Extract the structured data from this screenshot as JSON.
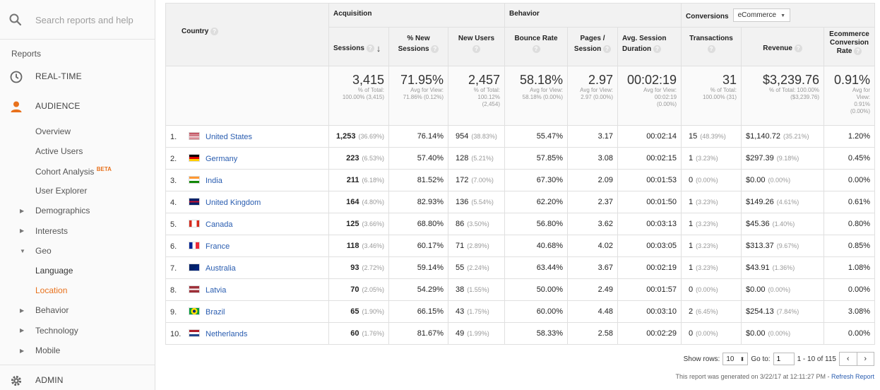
{
  "sidebar": {
    "search_placeholder": "Search reports and help",
    "reports_label": "Reports",
    "realtime": "REAL-TIME",
    "audience": "AUDIENCE",
    "overview": "Overview",
    "active_users": "Active Users",
    "cohort": "Cohort Analysis",
    "cohort_badge": "BETA",
    "user_explorer": "User Explorer",
    "demographics": "Demographics",
    "interests": "Interests",
    "geo": "Geo",
    "language": "Language",
    "location": "Location",
    "behavior": "Behavior",
    "technology": "Technology",
    "mobile": "Mobile",
    "admin": "ADMIN",
    "accent_color": "#e8711c"
  },
  "table": {
    "groups": {
      "acquisition": "Acquisition",
      "behavior": "Behavior",
      "conversions": "Conversions",
      "conversion_select": "eCommerce"
    },
    "headers": {
      "country": "Country",
      "sessions": "Sessions",
      "new_sessions_1": "% New",
      "new_sessions_2": "Sessions",
      "new_users": "New Users",
      "bounce_rate": "Bounce Rate",
      "pages_1": "Pages /",
      "pages_2": "Session",
      "avg_dur_1": "Avg. Session",
      "avg_dur_2": "Duration",
      "transactions": "Transactions",
      "revenue": "Revenue",
      "ecr_1": "Ecommerce",
      "ecr_2": "Conversion",
      "ecr_3": "Rate"
    },
    "totals": {
      "sessions": "3,415",
      "sessions_sub1": "% of Total:",
      "sessions_sub2": "100.00% (3,415)",
      "new_sessions": "71.95%",
      "new_sessions_sub1": "Avg for View:",
      "new_sessions_sub2": "71.86% (0.12%)",
      "new_users": "2,457",
      "new_users_sub1": "% of Total:",
      "new_users_sub2": "100.12%",
      "new_users_sub3": "(2,454)",
      "bounce": "58.18%",
      "bounce_sub1": "Avg for View:",
      "bounce_sub2": "58.18% (0.00%)",
      "pages": "2.97",
      "pages_sub1": "Avg for View:",
      "pages_sub2": "2.97 (0.00%)",
      "duration": "00:02:19",
      "duration_sub1": "Avg for View:",
      "duration_sub2": "00:02:19",
      "duration_sub3": "(0.00%)",
      "transactions": "31",
      "transactions_sub1": "% of Total:",
      "transactions_sub2": "100.00% (31)",
      "revenue": "$3,239.76",
      "revenue_sub1": "% of Total: 100.00%",
      "revenue_sub2": "($3,239.76)",
      "ecr": "0.91%",
      "ecr_sub1": "Avg for",
      "ecr_sub2": "View:",
      "ecr_sub3": "0.91%",
      "ecr_sub4": "(0.00%)"
    },
    "rows": [
      {
        "rank": "1.",
        "country": "United States",
        "flag": "us",
        "sessions": "1,253",
        "sessions_pct": "(36.69%)",
        "new_sessions": "76.14%",
        "new_users": "954",
        "new_users_pct": "(38.83%)",
        "bounce": "55.47%",
        "pages": "3.17",
        "duration": "00:02:14",
        "transactions": "15",
        "transactions_pct": "(48.39%)",
        "revenue": "$1,140.72",
        "revenue_pct": "(35.21%)",
        "ecr": "1.20%"
      },
      {
        "rank": "2.",
        "country": "Germany",
        "flag": "de",
        "sessions": "223",
        "sessions_pct": "(6.53%)",
        "new_sessions": "57.40%",
        "new_users": "128",
        "new_users_pct": "(5.21%)",
        "bounce": "57.85%",
        "pages": "3.08",
        "duration": "00:02:15",
        "transactions": "1",
        "transactions_pct": "(3.23%)",
        "revenue": "$297.39",
        "revenue_pct": "(9.18%)",
        "ecr": "0.45%"
      },
      {
        "rank": "3.",
        "country": "India",
        "flag": "in",
        "sessions": "211",
        "sessions_pct": "(6.18%)",
        "new_sessions": "81.52%",
        "new_users": "172",
        "new_users_pct": "(7.00%)",
        "bounce": "67.30%",
        "pages": "2.09",
        "duration": "00:01:53",
        "transactions": "0",
        "transactions_pct": "(0.00%)",
        "revenue": "$0.00",
        "revenue_pct": "(0.00%)",
        "ecr": "0.00%"
      },
      {
        "rank": "4.",
        "country": "United Kingdom",
        "flag": "gb",
        "sessions": "164",
        "sessions_pct": "(4.80%)",
        "new_sessions": "82.93%",
        "new_users": "136",
        "new_users_pct": "(5.54%)",
        "bounce": "62.20%",
        "pages": "2.37",
        "duration": "00:01:50",
        "transactions": "1",
        "transactions_pct": "(3.23%)",
        "revenue": "$149.26",
        "revenue_pct": "(4.61%)",
        "ecr": "0.61%"
      },
      {
        "rank": "5.",
        "country": "Canada",
        "flag": "ca",
        "sessions": "125",
        "sessions_pct": "(3.66%)",
        "new_sessions": "68.80%",
        "new_users": "86",
        "new_users_pct": "(3.50%)",
        "bounce": "56.80%",
        "pages": "3.62",
        "duration": "00:03:13",
        "transactions": "1",
        "transactions_pct": "(3.23%)",
        "revenue": "$45.36",
        "revenue_pct": "(1.40%)",
        "ecr": "0.80%"
      },
      {
        "rank": "6.",
        "country": "France",
        "flag": "fr",
        "sessions": "118",
        "sessions_pct": "(3.46%)",
        "new_sessions": "60.17%",
        "new_users": "71",
        "new_users_pct": "(2.89%)",
        "bounce": "40.68%",
        "pages": "4.02",
        "duration": "00:03:05",
        "transactions": "1",
        "transactions_pct": "(3.23%)",
        "revenue": "$313.37",
        "revenue_pct": "(9.67%)",
        "ecr": "0.85%"
      },
      {
        "rank": "7.",
        "country": "Australia",
        "flag": "au",
        "sessions": "93",
        "sessions_pct": "(2.72%)",
        "new_sessions": "59.14%",
        "new_users": "55",
        "new_users_pct": "(2.24%)",
        "bounce": "63.44%",
        "pages": "3.67",
        "duration": "00:02:19",
        "transactions": "1",
        "transactions_pct": "(3.23%)",
        "revenue": "$43.91",
        "revenue_pct": "(1.36%)",
        "ecr": "1.08%"
      },
      {
        "rank": "8.",
        "country": "Latvia",
        "flag": "lv",
        "sessions": "70",
        "sessions_pct": "(2.05%)",
        "new_sessions": "54.29%",
        "new_users": "38",
        "new_users_pct": "(1.55%)",
        "bounce": "50.00%",
        "pages": "2.49",
        "duration": "00:01:57",
        "transactions": "0",
        "transactions_pct": "(0.00%)",
        "revenue": "$0.00",
        "revenue_pct": "(0.00%)",
        "ecr": "0.00%"
      },
      {
        "rank": "9.",
        "country": "Brazil",
        "flag": "br",
        "sessions": "65",
        "sessions_pct": "(1.90%)",
        "new_sessions": "66.15%",
        "new_users": "43",
        "new_users_pct": "(1.75%)",
        "bounce": "60.00%",
        "pages": "4.48",
        "duration": "00:03:10",
        "transactions": "2",
        "transactions_pct": "(6.45%)",
        "revenue": "$254.13",
        "revenue_pct": "(7.84%)",
        "ecr": "3.08%"
      },
      {
        "rank": "10.",
        "country": "Netherlands",
        "flag": "nl",
        "sessions": "60",
        "sessions_pct": "(1.76%)",
        "new_sessions": "81.67%",
        "new_users": "49",
        "new_users_pct": "(1.99%)",
        "bounce": "58.33%",
        "pages": "2.58",
        "duration": "00:02:29",
        "transactions": "0",
        "transactions_pct": "(0.00%)",
        "revenue": "$0.00",
        "revenue_pct": "(0.00%)",
        "ecr": "0.00%"
      }
    ]
  },
  "footer": {
    "show_rows_label": "Show rows:",
    "rows_value": "10",
    "goto_label": "Go to:",
    "goto_value": "1",
    "range": "1 - 10 of 115",
    "prev": "‹",
    "next": "›",
    "generated": "This report was generated on 3/22/17 at 12:11:27 PM -",
    "refresh": "Refresh Report"
  }
}
